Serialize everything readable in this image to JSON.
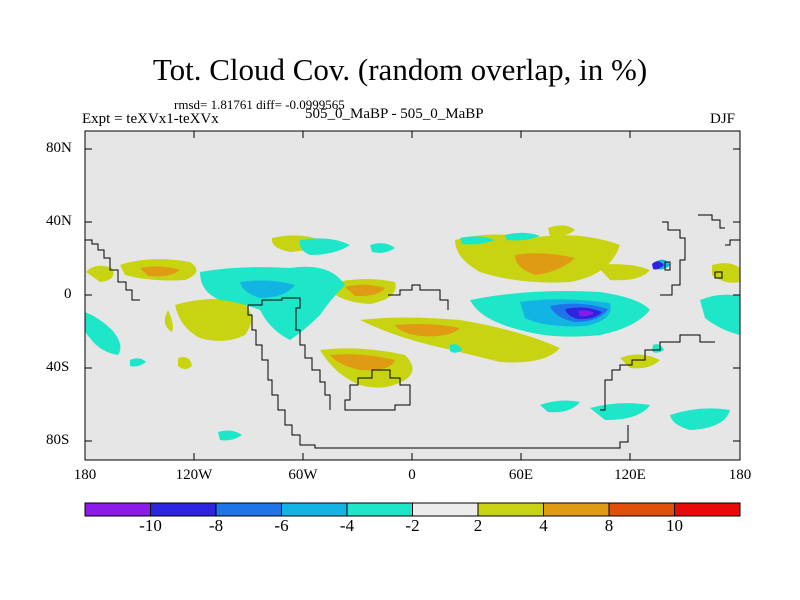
{
  "title": "Tot. Cloud Cov. (random overlap, in %)",
  "stats": "rmsd= 1.81761 diff= -0.0999565",
  "left_label": "Expt = teXVx1-teXVx",
  "center_label": "505_0_MaBP - 505_0_MaBP",
  "right_label": "DJF",
  "lat_ticks": [
    "80N",
    "40N",
    "0",
    "40S",
    "80S"
  ],
  "lon_ticks": [
    "180",
    "120W",
    "60W",
    "0",
    "60E",
    "120E",
    "180"
  ],
  "colorbar": {
    "labels": [
      "-10",
      "-8",
      "-6",
      "-4",
      "-2",
      "2",
      "4",
      "8",
      "10"
    ],
    "colors": [
      "#8a1be8",
      "#2d24e0",
      "#1e74e8",
      "#12b4e4",
      "#1ee6c8",
      "#ececec",
      "#c8d412",
      "#e09b14",
      "#e0500a",
      "#e80a0a"
    ]
  },
  "palette": {
    "background": "#e6e6e6",
    "neg2": "#1ee6c8",
    "neg4": "#12b4e4",
    "neg6": "#1e74e8",
    "neg8": "#2d24e0",
    "neg10": "#8a1be8",
    "pos2": "#c8d412",
    "pos4": "#e09b14",
    "pos8": "#e0500a"
  }
}
